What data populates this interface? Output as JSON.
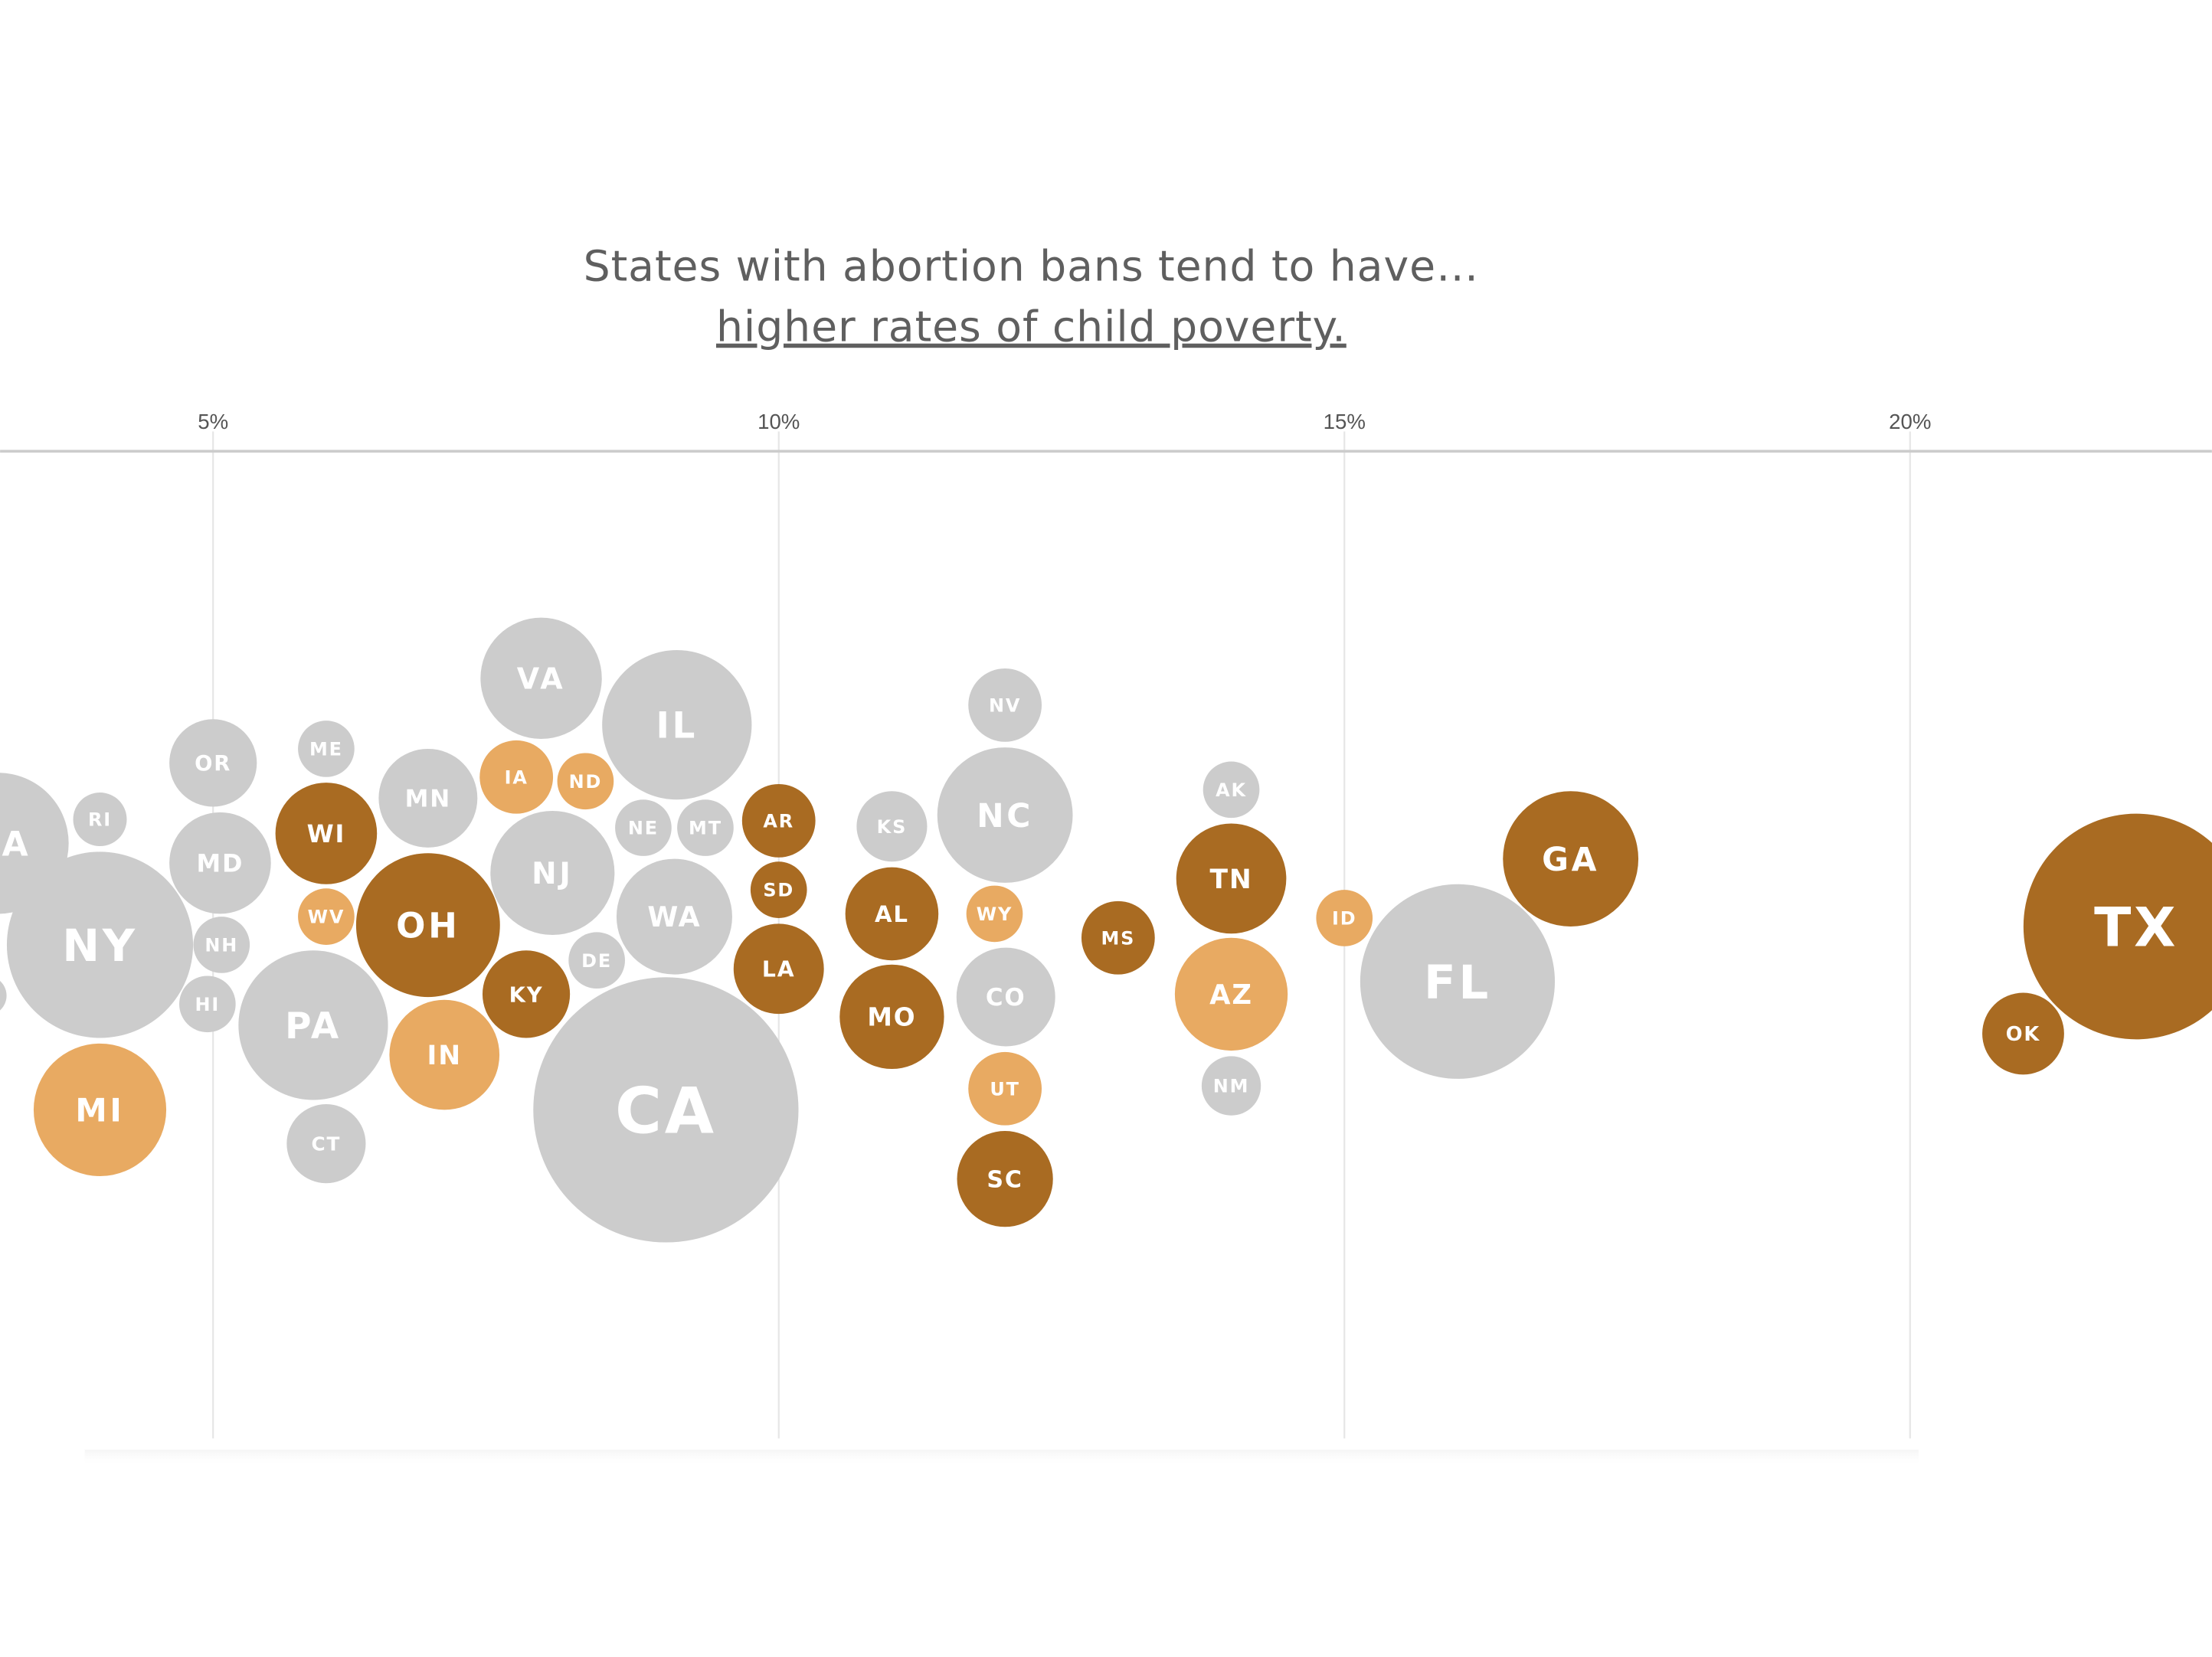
{
  "chart_data": {
    "type": "scatter",
    "subtype": "beeswarm-bubble",
    "title": "States with abortion bans tend to have…",
    "subtitle": "higher rates of child poverty.",
    "xlabel": "",
    "ylabel": "",
    "xlim": [
      3.1,
      23.6
    ],
    "x_ticks": [
      5,
      10,
      15,
      20
    ],
    "x_tick_labels": [
      "5%",
      "10%",
      "15%",
      "20%"
    ],
    "grid": true,
    "legend": "none",
    "colors": {
      "dark": "#a96b22",
      "light": "#e8aa62",
      "gray": "#cccccc"
    },
    "points": [
      {
        "label": "MA",
        "value": 3.1,
        "color": "gray"
      },
      {
        "label": "",
        "value": 3.0,
        "color": "gray"
      },
      {
        "label": "RI",
        "value": 4.0,
        "color": "gray"
      },
      {
        "label": "NY",
        "value": 4.0,
        "color": "gray"
      },
      {
        "label": "MI",
        "value": 4.0,
        "color": "light"
      },
      {
        "label": "OR",
        "value": 5.0,
        "color": "gray"
      },
      {
        "label": "MD",
        "value": 5.1,
        "color": "gray"
      },
      {
        "label": "NH",
        "value": 5.1,
        "color": "gray"
      },
      {
        "label": "HI",
        "value": 5.0,
        "color": "gray"
      },
      {
        "label": "ME",
        "value": 6.0,
        "color": "gray"
      },
      {
        "label": "WI",
        "value": 6.0,
        "color": "dark"
      },
      {
        "label": "WV",
        "value": 6.0,
        "color": "light"
      },
      {
        "label": "PA",
        "value": 5.9,
        "color": "gray"
      },
      {
        "label": "CT",
        "value": 6.0,
        "color": "gray"
      },
      {
        "label": "MN",
        "value": 6.9,
        "color": "gray"
      },
      {
        "label": "OH",
        "value": 6.9,
        "color": "dark"
      },
      {
        "label": "KY",
        "value": 7.8,
        "color": "dark"
      },
      {
        "label": "IN",
        "value": 7.0,
        "color": "light"
      },
      {
        "label": "VA",
        "value": 7.9,
        "color": "gray"
      },
      {
        "label": "IA",
        "value": 7.7,
        "color": "light"
      },
      {
        "label": "ND",
        "value": 8.3,
        "color": "light"
      },
      {
        "label": "NJ",
        "value": 8.0,
        "color": "gray"
      },
      {
        "label": "NE",
        "value": 8.8,
        "color": "gray"
      },
      {
        "label": "MT",
        "value": 9.4,
        "color": "gray"
      },
      {
        "label": "DE",
        "value": 8.4,
        "color": "gray"
      },
      {
        "label": "IL",
        "value": 9.1,
        "color": "gray"
      },
      {
        "label": "WA",
        "value": 9.1,
        "color": "gray"
      },
      {
        "label": "CA",
        "value": 9.0,
        "color": "gray"
      },
      {
        "label": "AR",
        "value": 10.0,
        "color": "dark"
      },
      {
        "label": "SD",
        "value": 10.0,
        "color": "dark"
      },
      {
        "label": "LA",
        "value": 10.0,
        "color": "dark"
      },
      {
        "label": "KS",
        "value": 11.0,
        "color": "gray"
      },
      {
        "label": "AL",
        "value": 11.0,
        "color": "dark"
      },
      {
        "label": "MO",
        "value": 11.0,
        "color": "dark"
      },
      {
        "label": "NV",
        "value": 12.0,
        "color": "gray"
      },
      {
        "label": "NC",
        "value": 12.0,
        "color": "gray"
      },
      {
        "label": "WY",
        "value": 11.9,
        "color": "light"
      },
      {
        "label": "CO",
        "value": 12.0,
        "color": "gray"
      },
      {
        "label": "UT",
        "value": 12.0,
        "color": "light"
      },
      {
        "label": "SC",
        "value": 12.0,
        "color": "dark"
      },
      {
        "label": "MS",
        "value": 13.0,
        "color": "dark"
      },
      {
        "label": "AK",
        "value": 14.0,
        "color": "gray"
      },
      {
        "label": "TN",
        "value": 14.0,
        "color": "dark"
      },
      {
        "label": "AZ",
        "value": 14.0,
        "color": "light"
      },
      {
        "label": "NM",
        "value": 14.0,
        "color": "gray"
      },
      {
        "label": "ID",
        "value": 15.0,
        "color": "light"
      },
      {
        "label": "FL",
        "value": 16.0,
        "color": "gray"
      },
      {
        "label": "GA",
        "value": 17.0,
        "color": "dark"
      },
      {
        "label": "OK",
        "value": 21.0,
        "color": "dark"
      },
      {
        "label": "TX",
        "value": 22.0,
        "color": "dark"
      }
    ]
  }
}
